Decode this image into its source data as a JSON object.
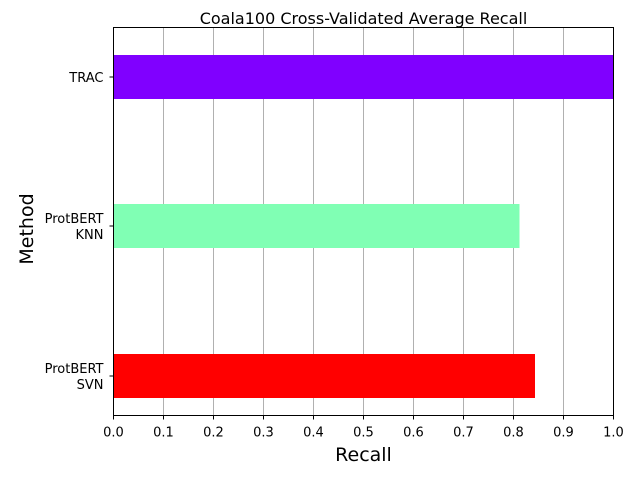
{
  "chart_data": {
    "type": "bar",
    "orientation": "horizontal",
    "title": "Coala100 Cross-Validated Average Recall",
    "xlabel": "Recall",
    "ylabel": "Method",
    "xlim": [
      0.0,
      1.0
    ],
    "xticks": [
      "0.0",
      "0.1",
      "0.2",
      "0.3",
      "0.4",
      "0.5",
      "0.6",
      "0.7",
      "0.8",
      "0.9",
      "1.0"
    ],
    "grid": "vertical-x",
    "categories": [
      {
        "lines": [
          "TRAC"
        ],
        "value": 1.0,
        "color": "#8000ff"
      },
      {
        "lines": [
          "ProtBERT",
          "KNN"
        ],
        "value": 0.812,
        "color": "#80ffb4"
      },
      {
        "lines": [
          "ProtBERT",
          "SVN"
        ],
        "value": 0.843,
        "color": "#ff0000"
      }
    ]
  }
}
